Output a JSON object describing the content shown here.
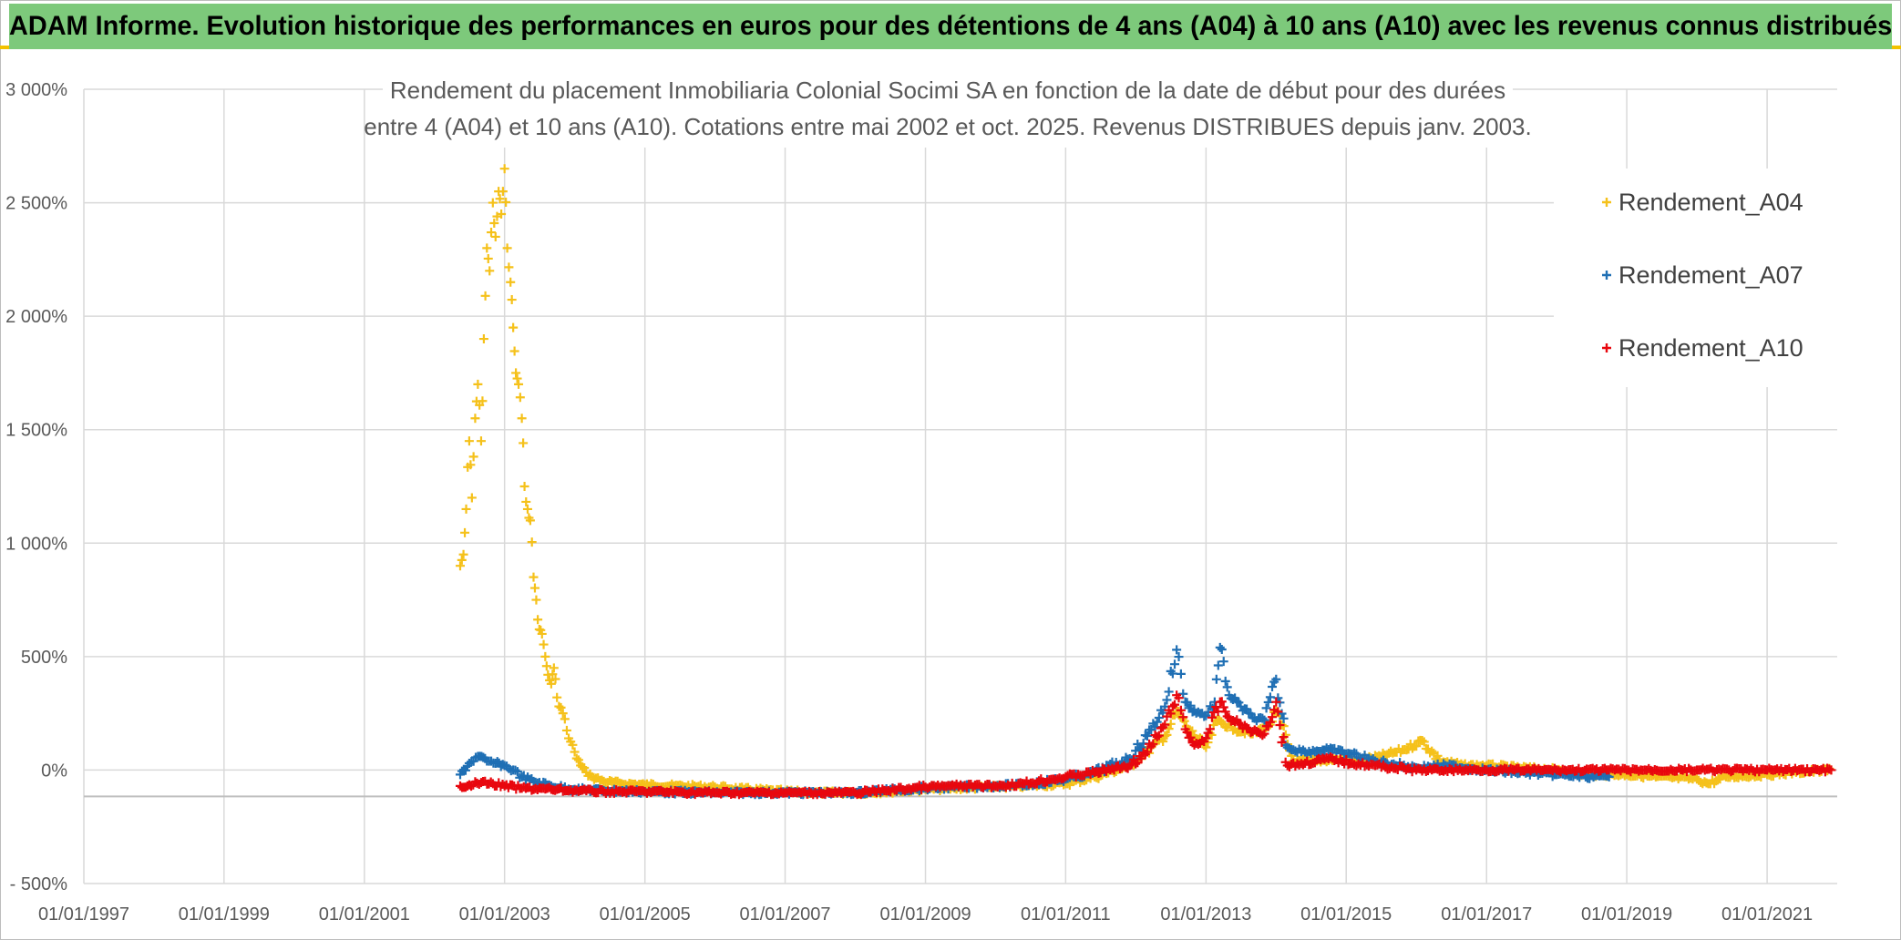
{
  "banner": {
    "title": "ADAM Informe. Evolution historique des performances en euros pour des détentions de 4 ans (A04) à 10 ans (A10) avec les revenus connus distribués",
    "background": "#7dc97b"
  },
  "chart_data": {
    "type": "scatter",
    "title": "Rendement du placement Inmobiliaria Colonial Socimi SA en fonction de la date de début pour des durées entre 4 (A04) et 10 ans (A10). Cotations entre mai 2002 et oct. 2025. Revenus DISTRIBUES depuis janv. 2003.",
    "title_lines": [
      "Rendement du placement Inmobiliaria Colonial Socimi SA en fonction de la date de début pour des durées",
      "entre 4 (A04) et 10 ans (A10). Cotations entre mai 2002 et oct. 2025. Revenus DISTRIBUES depuis janv. 2003."
    ],
    "xlabel": "",
    "ylabel": "",
    "xlim": [
      "1997-01-01",
      "2022-01-01"
    ],
    "ylim": [
      -500,
      3000
    ],
    "x_ticks": [
      "01/01/1997",
      "01/01/1999",
      "01/01/2001",
      "01/01/2003",
      "01/01/2005",
      "01/01/2007",
      "01/01/2009",
      "01/01/2011",
      "01/01/2013",
      "01/01/2015",
      "01/01/2017",
      "01/01/2019",
      "01/01/2021"
    ],
    "y_ticks": [
      {
        "value": -500,
        "label": "- 500%"
      },
      {
        "value": 0,
        "label": "0%"
      },
      {
        "value": 500,
        "label": "500%"
      },
      {
        "value": 1000,
        "label": "1 000%"
      },
      {
        "value": 1500,
        "label": "1 500%"
      },
      {
        "value": 2000,
        "label": "2 000%"
      },
      {
        "value": 2500,
        "label": "2 500%"
      },
      {
        "value": 3000,
        "label": "3 000%"
      }
    ],
    "grid": true,
    "legend_position": "top-right",
    "series": [
      {
        "name": "Rendement_A04",
        "color": "#f5c11a",
        "marker": "plus",
        "points": [
          [
            "2002-05-15",
            900
          ],
          [
            "2002-06-01",
            950
          ],
          [
            "2002-06-15",
            1150
          ],
          [
            "2002-07-01",
            1450
          ],
          [
            "2002-07-15",
            1200
          ],
          [
            "2002-08-01",
            1550
          ],
          [
            "2002-08-15",
            1700
          ],
          [
            "2002-09-01",
            1450
          ],
          [
            "2002-09-15",
            1900
          ],
          [
            "2002-10-01",
            2300
          ],
          [
            "2002-10-15",
            2200
          ],
          [
            "2002-11-01",
            2500
          ],
          [
            "2002-11-15",
            2350
          ],
          [
            "2002-12-01",
            2550
          ],
          [
            "2002-12-15",
            2450
          ],
          [
            "2003-01-01",
            2650
          ],
          [
            "2003-01-15",
            2300
          ],
          [
            "2003-02-01",
            2150
          ],
          [
            "2003-02-15",
            1950
          ],
          [
            "2003-03-01",
            1750
          ],
          [
            "2003-03-15",
            1700
          ],
          [
            "2003-04-01",
            1550
          ],
          [
            "2003-04-15",
            1250
          ],
          [
            "2003-05-01",
            1150
          ],
          [
            "2003-05-15",
            1100
          ],
          [
            "2003-06-01",
            850
          ],
          [
            "2003-06-15",
            750
          ],
          [
            "2003-07-01",
            620
          ],
          [
            "2003-07-15",
            600
          ],
          [
            "2003-08-01",
            500
          ],
          [
            "2003-08-15",
            420
          ],
          [
            "2003-09-01",
            380
          ],
          [
            "2003-09-15",
            450
          ],
          [
            "2003-10-01",
            320
          ],
          [
            "2003-11-01",
            250
          ],
          [
            "2003-12-01",
            140
          ],
          [
            "2004-01-01",
            80
          ],
          [
            "2004-02-01",
            20
          ],
          [
            "2004-03-01",
            -10
          ],
          [
            "2004-04-01",
            -30
          ],
          [
            "2004-06-01",
            -50
          ],
          [
            "2004-09-01",
            -60
          ],
          [
            "2005-01-01",
            -65
          ],
          [
            "2005-06-01",
            -70
          ],
          [
            "2006-01-01",
            -75
          ],
          [
            "2006-06-01",
            -85
          ],
          [
            "2007-01-01",
            -95
          ],
          [
            "2007-06-01",
            -100
          ],
          [
            "2008-01-01",
            -100
          ],
          [
            "2008-06-01",
            -95
          ],
          [
            "2009-01-01",
            -85
          ],
          [
            "2009-06-01",
            -80
          ],
          [
            "2010-01-01",
            -75
          ],
          [
            "2010-06-01",
            -70
          ],
          [
            "2011-01-01",
            -60
          ],
          [
            "2011-06-01",
            -30
          ],
          [
            "2011-12-01",
            20
          ],
          [
            "2012-03-01",
            80
          ],
          [
            "2012-06-01",
            150
          ],
          [
            "2012-08-01",
            260
          ],
          [
            "2012-10-01",
            180
          ],
          [
            "2013-01-01",
            100
          ],
          [
            "2013-03-01",
            220
          ],
          [
            "2013-06-01",
            180
          ],
          [
            "2013-09-01",
            160
          ],
          [
            "2013-12-01",
            200
          ],
          [
            "2014-01-01",
            260
          ],
          [
            "2014-04-01",
            40
          ],
          [
            "2014-08-01",
            40
          ],
          [
            "2014-12-01",
            50
          ],
          [
            "2015-03-01",
            40
          ],
          [
            "2015-07-01",
            60
          ],
          [
            "2015-11-01",
            90
          ],
          [
            "2016-02-01",
            130
          ],
          [
            "2016-05-01",
            40
          ],
          [
            "2016-09-01",
            20
          ],
          [
            "2017-01-01",
            20
          ],
          [
            "2017-06-01",
            10
          ],
          [
            "2018-01-01",
            0
          ],
          [
            "2018-06-01",
            -20
          ],
          [
            "2019-01-01",
            -20
          ],
          [
            "2019-06-01",
            -30
          ],
          [
            "2020-01-01",
            -40
          ],
          [
            "2020-03-01",
            -60
          ],
          [
            "2020-06-01",
            -30
          ],
          [
            "2021-01-01",
            -20
          ],
          [
            "2021-06-01",
            -10
          ],
          [
            "2021-12-01",
            0
          ]
        ]
      },
      {
        "name": "Rendement_A07",
        "color": "#1f6fb4",
        "marker": "plus",
        "points": [
          [
            "2002-05-15",
            -20
          ],
          [
            "2002-07-01",
            30
          ],
          [
            "2002-08-15",
            60
          ],
          [
            "2002-10-01",
            40
          ],
          [
            "2002-11-15",
            30
          ],
          [
            "2003-01-01",
            20
          ],
          [
            "2003-02-15",
            0
          ],
          [
            "2003-04-01",
            -30
          ],
          [
            "2003-06-01",
            -50
          ],
          [
            "2003-09-01",
            -70
          ],
          [
            "2004-01-01",
            -85
          ],
          [
            "2004-06-01",
            -90
          ],
          [
            "2005-01-01",
            -95
          ],
          [
            "2006-01-01",
            -100
          ],
          [
            "2007-01-01",
            -100
          ],
          [
            "2008-01-01",
            -100
          ],
          [
            "2008-06-01",
            -90
          ],
          [
            "2009-01-01",
            -80
          ],
          [
            "2009-06-01",
            -75
          ],
          [
            "2010-01-01",
            -70
          ],
          [
            "2010-06-01",
            -65
          ],
          [
            "2011-01-01",
            -40
          ],
          [
            "2011-06-01",
            -10
          ],
          [
            "2011-12-01",
            50
          ],
          [
            "2012-03-01",
            150
          ],
          [
            "2012-06-01",
            280
          ],
          [
            "2012-08-01",
            530
          ],
          [
            "2012-09-15",
            300
          ],
          [
            "2012-11-01",
            260
          ],
          [
            "2013-01-01",
            240
          ],
          [
            "2013-02-15",
            300
          ],
          [
            "2013-03-15",
            540
          ],
          [
            "2013-05-01",
            330
          ],
          [
            "2013-07-01",
            280
          ],
          [
            "2013-09-01",
            230
          ],
          [
            "2013-11-01",
            220
          ],
          [
            "2014-01-01",
            400
          ],
          [
            "2014-03-01",
            100
          ],
          [
            "2014-06-01",
            80
          ],
          [
            "2014-10-01",
            90
          ],
          [
            "2015-02-01",
            70
          ],
          [
            "2015-06-01",
            40
          ],
          [
            "2016-01-01",
            10
          ],
          [
            "2016-06-01",
            20
          ],
          [
            "2017-01-01",
            0
          ],
          [
            "2017-06-01",
            -10
          ],
          [
            "2018-01-01",
            -20
          ],
          [
            "2018-06-01",
            -30
          ],
          [
            "2018-10-01",
            -30
          ]
        ]
      },
      {
        "name": "Rendement_A10",
        "color": "#e8070e",
        "marker": "plus",
        "points": [
          [
            "2002-05-15",
            -70
          ],
          [
            "2002-07-01",
            -65
          ],
          [
            "2002-09-01",
            -55
          ],
          [
            "2002-11-01",
            -60
          ],
          [
            "2003-01-01",
            -70
          ],
          [
            "2003-04-01",
            -80
          ],
          [
            "2003-09-01",
            -85
          ],
          [
            "2004-01-01",
            -90
          ],
          [
            "2004-06-01",
            -95
          ],
          [
            "2005-01-01",
            -95
          ],
          [
            "2006-01-01",
            -100
          ],
          [
            "2007-01-01",
            -100
          ],
          [
            "2008-01-01",
            -100
          ],
          [
            "2008-06-01",
            -90
          ],
          [
            "2009-01-01",
            -75
          ],
          [
            "2009-06-01",
            -70
          ],
          [
            "2010-01-01",
            -70
          ],
          [
            "2010-06-01",
            -60
          ],
          [
            "2011-01-01",
            -30
          ],
          [
            "2011-06-01",
            -10
          ],
          [
            "2011-12-01",
            20
          ],
          [
            "2012-03-01",
            80
          ],
          [
            "2012-06-01",
            200
          ],
          [
            "2012-08-01",
            330
          ],
          [
            "2012-09-15",
            180
          ],
          [
            "2012-11-01",
            110
          ],
          [
            "2013-01-01",
            140
          ],
          [
            "2013-03-15",
            300
          ],
          [
            "2013-05-01",
            230
          ],
          [
            "2013-07-01",
            200
          ],
          [
            "2013-09-01",
            170
          ],
          [
            "2013-11-01",
            160
          ],
          [
            "2014-01-01",
            300
          ],
          [
            "2014-03-01",
            20
          ],
          [
            "2014-06-01",
            30
          ],
          [
            "2014-10-01",
            50
          ],
          [
            "2015-02-01",
            30
          ],
          [
            "2015-06-01",
            20
          ],
          [
            "2016-01-01",
            0
          ],
          [
            "2016-06-01",
            0
          ],
          [
            "2017-01-01",
            0
          ],
          [
            "2018-01-01",
            0
          ],
          [
            "2019-01-01",
            0
          ],
          [
            "2020-01-01",
            0
          ],
          [
            "2021-01-01",
            0
          ],
          [
            "2021-12-01",
            0
          ]
        ]
      }
    ]
  }
}
